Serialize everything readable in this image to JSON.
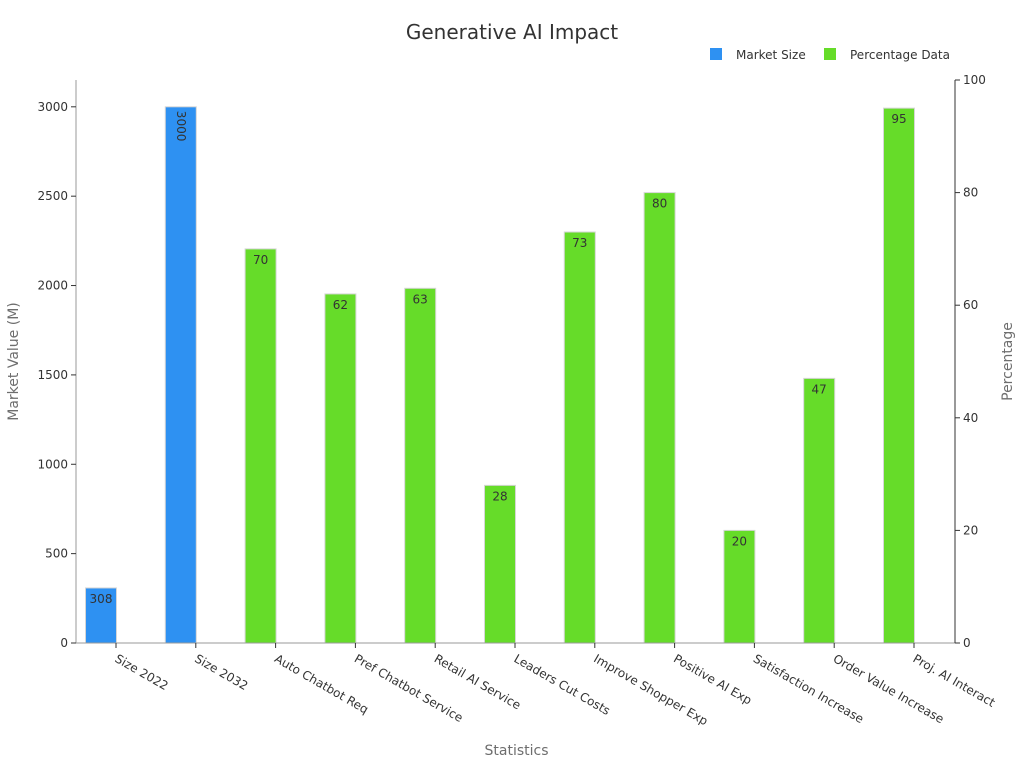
{
  "chart_data": {
    "type": "bar",
    "title": "Generative AI Impact",
    "xlabel": "Statistics",
    "ylabel_left": "Market Value (M)",
    "ylabel_right": "Percentage",
    "categories": [
      "Size 2022",
      "Size 2032",
      "Auto Chatbot Req",
      "Pref Chatbot Service",
      "Retail AI Service",
      "Leaders Cut Costs",
      "Improve Shopper Exp",
      "Positive AI Exp",
      "Satisfaction Increase",
      "Order Value Increase",
      "Proj. AI Interact"
    ],
    "series": [
      {
        "name": "Market Size",
        "axis": "left",
        "color": "#2e91f2",
        "values": [
          308,
          3000,
          null,
          null,
          null,
          null,
          null,
          null,
          null,
          null,
          null
        ],
        "labels": [
          "308",
          "3000",
          "",
          "",
          "",
          "",
          "",
          "",
          "",
          "",
          ""
        ]
      },
      {
        "name": "Percentage Data",
        "axis": "right",
        "color": "#66dc29",
        "values": [
          null,
          null,
          70,
          62,
          63,
          28,
          73,
          80,
          20,
          47,
          95
        ],
        "labels": [
          "",
          "",
          "70",
          "62",
          "63",
          "28",
          "73",
          "80",
          "20",
          "47",
          "95"
        ]
      }
    ],
    "ylim_left": [
      0,
      3150
    ],
    "ylim_right": [
      0,
      100
    ],
    "yticks_left": [
      "0",
      "500",
      "1000",
      "1500",
      "2000",
      "2500",
      "3000"
    ],
    "yticks_right": [
      "0",
      "20",
      "40",
      "60",
      "80",
      "100"
    ],
    "grid": false,
    "legend": "top-right"
  }
}
